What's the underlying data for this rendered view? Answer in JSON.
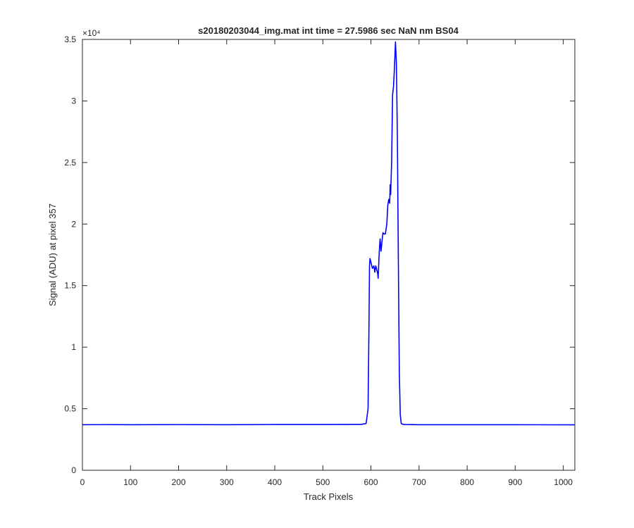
{
  "chart_data": {
    "type": "line",
    "title": "s20180203044_img.mat int time = 27.5986 sec  NaN nm BS04",
    "xlabel": "Track Pixels",
    "ylabel": "Signal (ADU) at pixel 357",
    "xlim": [
      0,
      1024
    ],
    "ylim": [
      0,
      35000
    ],
    "xticks": [
      0,
      100,
      200,
      300,
      400,
      500,
      600,
      700,
      800,
      900,
      1000
    ],
    "xtick_labels": [
      "0",
      "100",
      "200",
      "300",
      "400",
      "500",
      "600",
      "700",
      "800",
      "900",
      "1000"
    ],
    "yticks": [
      0,
      5000,
      10000,
      15000,
      20000,
      25000,
      30000,
      35000
    ],
    "ytick_labels": [
      "0",
      "0.5",
      "1",
      "1.5",
      "2",
      "2.5",
      "3",
      "3.5"
    ],
    "y_exponent_label": "×10⁴",
    "grid": false,
    "legend": "none",
    "line_color": "#0000ff",
    "series": [
      {
        "x": [
          0,
          50,
          100,
          200,
          300,
          400,
          500,
          580,
          590,
          594,
          596,
          597,
          598,
          600,
          603,
          606,
          608,
          610,
          612,
          614,
          615,
          617,
          619,
          621,
          623,
          625,
          627,
          630,
          633,
          635,
          637,
          639,
          640,
          641,
          643,
          645,
          647,
          649,
          651,
          653,
          655,
          657,
          659,
          661,
          663,
          665,
          670,
          700,
          800,
          900,
          1000,
          1024
        ],
        "y": [
          3700,
          3710,
          3700,
          3710,
          3700,
          3720,
          3720,
          3730,
          3800,
          5000,
          12000,
          16600,
          17200,
          16900,
          16400,
          16600,
          16100,
          16600,
          16300,
          16000,
          15600,
          17500,
          18800,
          17800,
          18600,
          19300,
          19200,
          19200,
          20000,
          21500,
          22000,
          21700,
          23200,
          22400,
          25000,
          30500,
          31200,
          32800,
          34800,
          33000,
          27000,
          17000,
          8000,
          4500,
          3800,
          3750,
          3720,
          3700,
          3700,
          3700,
          3690,
          3690
        ]
      }
    ]
  }
}
